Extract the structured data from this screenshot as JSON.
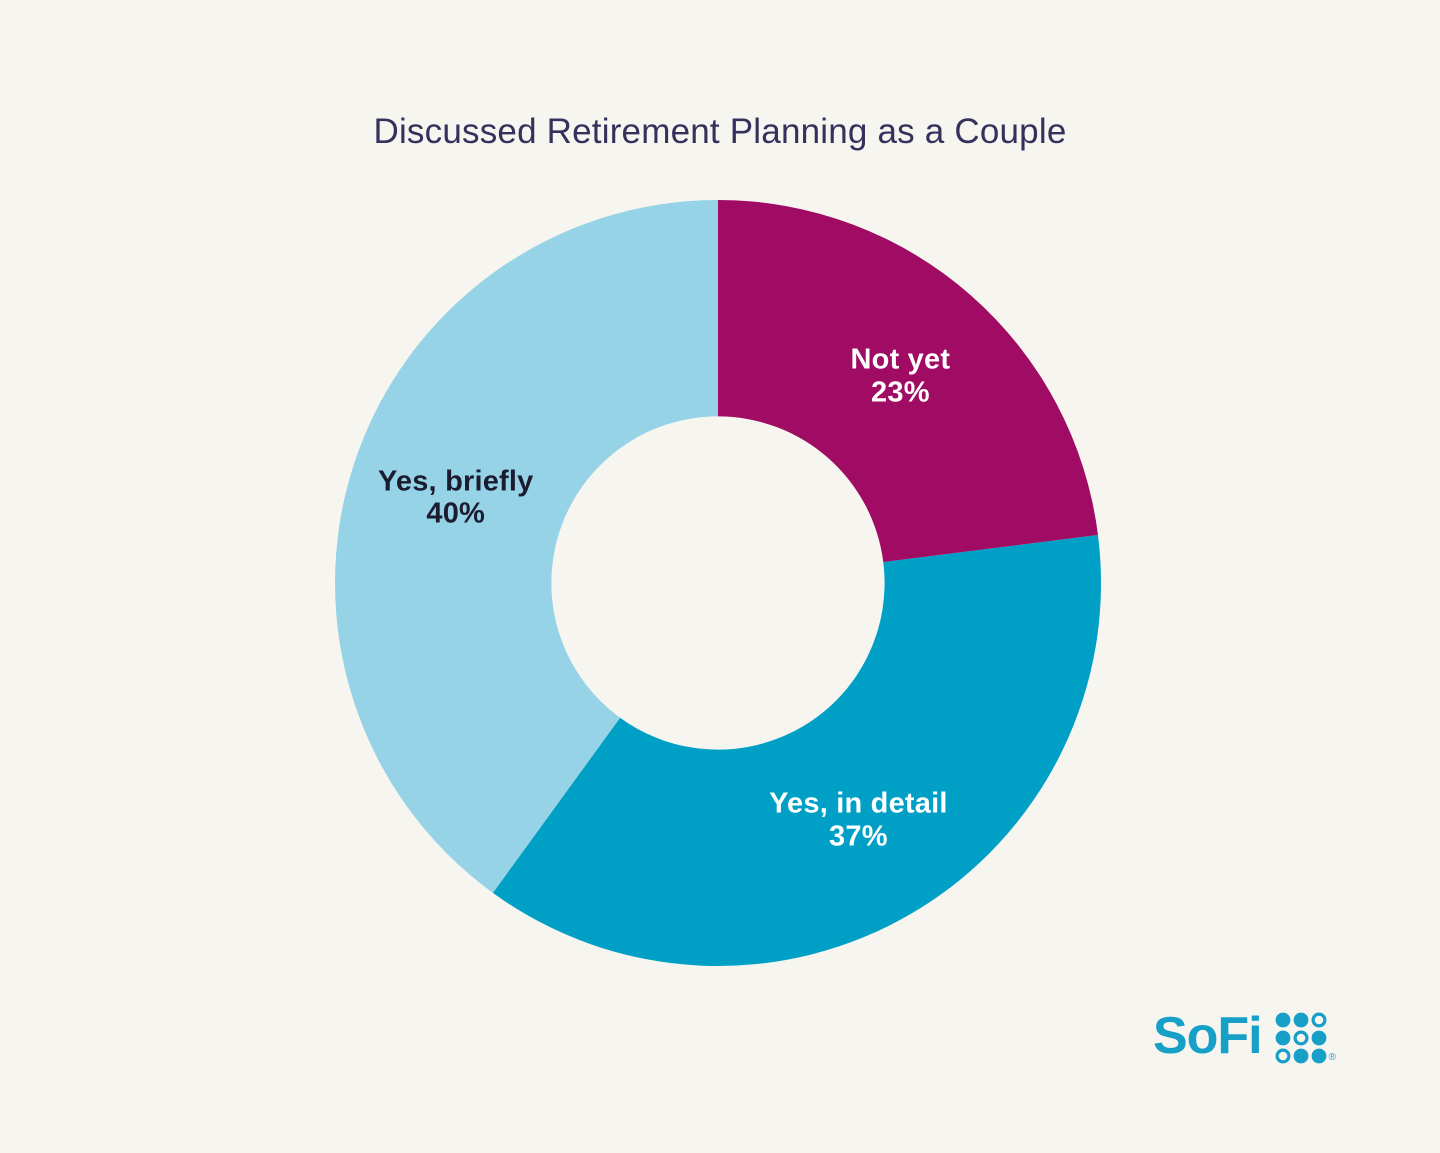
{
  "page": {
    "background_color": "#f7f5f0"
  },
  "chart_data": {
    "type": "pie",
    "subtype": "donut",
    "title": "Discussed Retirement Planning as a Couple",
    "title_color": "#34325c",
    "start_angle_deg": 0,
    "direction": "clockwise",
    "inner_radius_ratio": 0.435,
    "label_radius_ratio": 0.72,
    "legend": "none",
    "labels_on_slices": true,
    "categories": [
      "Not yet",
      "Yes, in detail",
      "Yes, briefly"
    ],
    "values": [
      23,
      37,
      40
    ],
    "segments": [
      {
        "label": "Not yet",
        "value": 23,
        "display_value": "23%",
        "color": "#a00b63",
        "label_color": "#ffffff"
      },
      {
        "label": "Yes, in detail",
        "value": 37,
        "display_value": "37%",
        "color": "#00a0c6",
        "label_color": "#ffffff"
      },
      {
        "label": "Yes, briefly",
        "value": 40,
        "display_value": "40%",
        "color": "#96d3e6",
        "label_color": "#1c1c30"
      }
    ]
  },
  "branding": {
    "logo_text": "SoFi",
    "logo_color": "#169fc7",
    "trademark": "®",
    "logo_grid": [
      [
        1,
        1,
        0
      ],
      [
        1,
        0,
        1
      ],
      [
        0,
        1,
        1
      ]
    ]
  }
}
